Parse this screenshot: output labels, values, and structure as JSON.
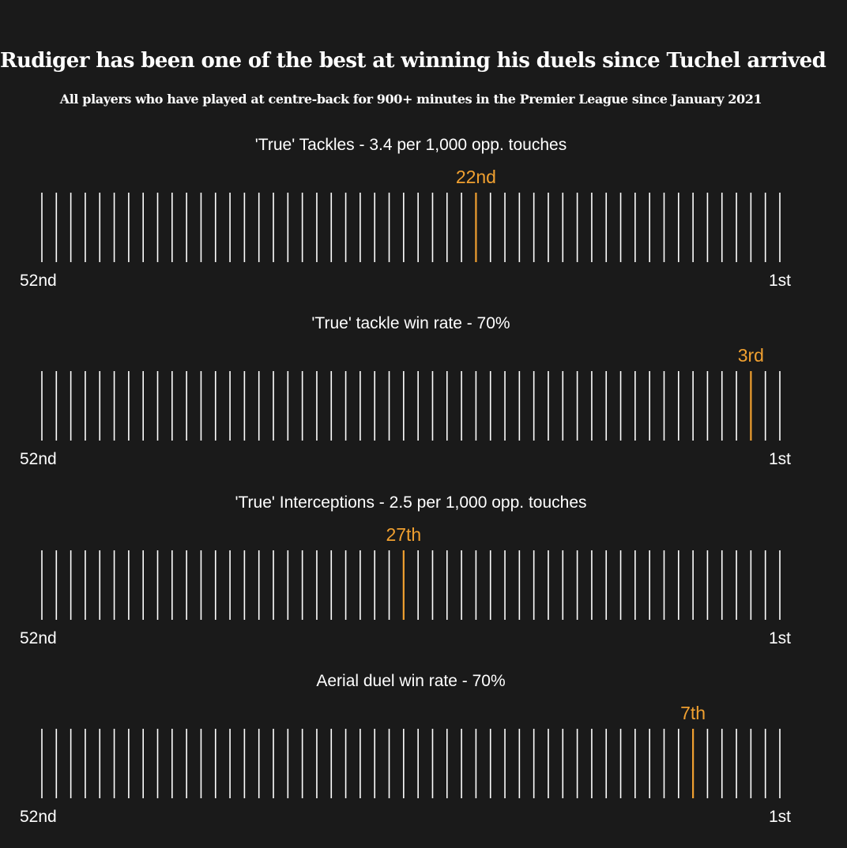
{
  "title": "Rudiger has been one of the best at winning his duels since Tuchel arrived",
  "subtitle": "All players who have played at centre-back for 900+ minutes in the Premier League since January 2021",
  "colors": {
    "background": "#1a1a1a",
    "tick": "#ffffff",
    "highlight": "#f0a030"
  },
  "chart_data": [
    {
      "type": "bar",
      "title": "'True' Tackles - 3.4 per 1,000 opp. touches",
      "total_players": 52,
      "highlight_rank": 22,
      "highlight_label": "22nd",
      "left_label": "52nd",
      "right_label": "1st"
    },
    {
      "type": "bar",
      "title": "'True' tackle win rate - 70%",
      "total_players": 52,
      "highlight_rank": 3,
      "highlight_label": "3rd",
      "left_label": "52nd",
      "right_label": "1st"
    },
    {
      "type": "bar",
      "title": "'True' Interceptions - 2.5 per 1,000 opp. touches",
      "total_players": 52,
      "highlight_rank": 27,
      "highlight_label": "27th",
      "left_label": "52nd",
      "right_label": "1st"
    },
    {
      "type": "bar",
      "title": "Aerial duel win rate - 70%",
      "total_players": 52,
      "highlight_rank": 7,
      "highlight_label": "7th",
      "left_label": "52nd",
      "right_label": "1st"
    }
  ]
}
